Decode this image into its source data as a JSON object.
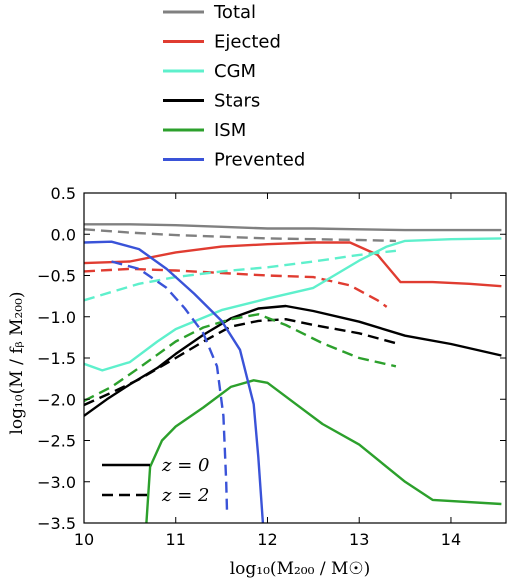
{
  "chart_data": {
    "type": "line",
    "xlabel": "log₁₀(M₂₀₀ / M☉)",
    "ylabel": "log₁₀(M / fᵦ M₂₀₀)",
    "xlim": [
      10.0,
      14.6
    ],
    "ylim": [
      -3.5,
      0.5
    ],
    "xticks": [
      "10",
      "11",
      "12",
      "13",
      "14"
    ],
    "yticks": [
      "0.5",
      "0.0",
      "−0.5",
      "−1.0",
      "−1.5",
      "−2.0",
      "−2.5",
      "−3.0",
      "−3.5"
    ],
    "grid": false,
    "legend_position": "above plot, left",
    "style_legend_position": "lower-left",
    "style_legend": [
      {
        "label": "z = 0",
        "dash": "solid"
      },
      {
        "label": "z = 2",
        "dash": "dashed"
      }
    ],
    "series": [
      {
        "name": "Total",
        "color": "#808080",
        "redshift": 0,
        "points": [
          [
            10.0,
            0.12
          ],
          [
            10.5,
            0.12
          ],
          [
            11.0,
            0.11
          ],
          [
            11.5,
            0.09
          ],
          [
            12.0,
            0.07
          ],
          [
            12.5,
            0.07
          ],
          [
            13.0,
            0.06
          ],
          [
            13.5,
            0.05
          ],
          [
            14.0,
            0.05
          ],
          [
            14.55,
            0.05
          ]
        ]
      },
      {
        "name": "Total",
        "color": "#808080",
        "redshift": 2,
        "points": [
          [
            10.0,
            0.06
          ],
          [
            10.5,
            0.02
          ],
          [
            11.0,
            -0.01
          ],
          [
            11.5,
            -0.03
          ],
          [
            12.0,
            -0.05
          ],
          [
            12.5,
            -0.06
          ],
          [
            13.0,
            -0.07
          ],
          [
            13.4,
            -0.08
          ]
        ]
      },
      {
        "name": "Ejected",
        "color": "#e03c31",
        "redshift": 0,
        "points": [
          [
            10.0,
            -0.35
          ],
          [
            10.5,
            -0.33
          ],
          [
            11.0,
            -0.22
          ],
          [
            11.5,
            -0.15
          ],
          [
            12.0,
            -0.12
          ],
          [
            12.5,
            -0.1
          ],
          [
            12.9,
            -0.1
          ],
          [
            13.2,
            -0.25
          ],
          [
            13.45,
            -0.58
          ],
          [
            13.8,
            -0.58
          ],
          [
            14.2,
            -0.6
          ],
          [
            14.55,
            -0.63
          ]
        ]
      },
      {
        "name": "Ejected",
        "color": "#e03c31",
        "redshift": 2,
        "points": [
          [
            10.0,
            -0.45
          ],
          [
            10.5,
            -0.42
          ],
          [
            11.0,
            -0.44
          ],
          [
            11.5,
            -0.47
          ],
          [
            12.0,
            -0.5
          ],
          [
            12.5,
            -0.52
          ],
          [
            12.9,
            -0.62
          ],
          [
            13.2,
            -0.8
          ],
          [
            13.3,
            -0.88
          ]
        ]
      },
      {
        "name": "CGM",
        "color": "#5ef0cc",
        "redshift": 0,
        "points": [
          [
            10.0,
            -1.57
          ],
          [
            10.2,
            -1.65
          ],
          [
            10.5,
            -1.55
          ],
          [
            10.8,
            -1.3
          ],
          [
            11.0,
            -1.15
          ],
          [
            11.5,
            -0.92
          ],
          [
            12.0,
            -0.78
          ],
          [
            12.5,
            -0.65
          ],
          [
            13.0,
            -0.32
          ],
          [
            13.3,
            -0.15
          ],
          [
            13.5,
            -0.08
          ],
          [
            14.0,
            -0.06
          ],
          [
            14.55,
            -0.05
          ]
        ]
      },
      {
        "name": "CGM",
        "color": "#5ef0cc",
        "redshift": 2,
        "points": [
          [
            10.0,
            -0.8
          ],
          [
            10.3,
            -0.7
          ],
          [
            10.6,
            -0.6
          ],
          [
            11.0,
            -0.52
          ],
          [
            11.5,
            -0.45
          ],
          [
            12.0,
            -0.4
          ],
          [
            12.5,
            -0.33
          ],
          [
            13.0,
            -0.25
          ],
          [
            13.4,
            -0.2
          ]
        ]
      },
      {
        "name": "Stars",
        "color": "#000000",
        "redshift": 0,
        "points": [
          [
            10.0,
            -2.2
          ],
          [
            10.25,
            -2.0
          ],
          [
            10.5,
            -1.82
          ],
          [
            10.8,
            -1.62
          ],
          [
            11.0,
            -1.45
          ],
          [
            11.3,
            -1.22
          ],
          [
            11.6,
            -1.02
          ],
          [
            11.9,
            -0.9
          ],
          [
            12.2,
            -0.87
          ],
          [
            12.5,
            -0.93
          ],
          [
            13.0,
            -1.06
          ],
          [
            13.5,
            -1.23
          ],
          [
            14.0,
            -1.33
          ],
          [
            14.55,
            -1.47
          ]
        ]
      },
      {
        "name": "Stars",
        "color": "#000000",
        "redshift": 2,
        "points": [
          [
            10.0,
            -2.07
          ],
          [
            10.3,
            -1.92
          ],
          [
            10.6,
            -1.76
          ],
          [
            11.0,
            -1.5
          ],
          [
            11.3,
            -1.3
          ],
          [
            11.6,
            -1.12
          ],
          [
            11.9,
            -1.05
          ],
          [
            12.2,
            -1.03
          ],
          [
            12.5,
            -1.1
          ],
          [
            13.0,
            -1.2
          ],
          [
            13.4,
            -1.32
          ]
        ]
      },
      {
        "name": "ISM",
        "color": "#2ca02c",
        "redshift": 0,
        "points": [
          [
            10.68,
            -3.5
          ],
          [
            10.72,
            -2.82
          ],
          [
            10.85,
            -2.5
          ],
          [
            11.0,
            -2.33
          ],
          [
            11.3,
            -2.1
          ],
          [
            11.6,
            -1.85
          ],
          [
            11.85,
            -1.77
          ],
          [
            12.0,
            -1.8
          ],
          [
            12.3,
            -2.05
          ],
          [
            12.6,
            -2.3
          ],
          [
            13.0,
            -2.55
          ],
          [
            13.5,
            -3.0
          ],
          [
            13.8,
            -3.22
          ],
          [
            14.55,
            -3.27
          ]
        ]
      },
      {
        "name": "ISM",
        "color": "#2ca02c",
        "redshift": 2,
        "points": [
          [
            10.0,
            -2.02
          ],
          [
            10.3,
            -1.85
          ],
          [
            10.6,
            -1.62
          ],
          [
            11.0,
            -1.3
          ],
          [
            11.3,
            -1.13
          ],
          [
            11.6,
            -1.03
          ],
          [
            11.9,
            -0.97
          ],
          [
            12.2,
            -1.1
          ],
          [
            12.6,
            -1.32
          ],
          [
            13.0,
            -1.5
          ],
          [
            13.4,
            -1.6
          ]
        ]
      },
      {
        "name": "Prevented",
        "color": "#3a53d8",
        "redshift": 0,
        "points": [
          [
            10.0,
            -0.1
          ],
          [
            10.3,
            -0.09
          ],
          [
            10.6,
            -0.18
          ],
          [
            10.9,
            -0.42
          ],
          [
            11.2,
            -0.72
          ],
          [
            11.5,
            -1.05
          ],
          [
            11.7,
            -1.4
          ],
          [
            11.85,
            -2.06
          ],
          [
            11.9,
            -2.7
          ],
          [
            11.95,
            -3.5
          ]
        ]
      },
      {
        "name": "Prevented",
        "color": "#3a53d8",
        "redshift": 2,
        "points": [
          [
            10.3,
            -0.33
          ],
          [
            10.6,
            -0.42
          ],
          [
            10.9,
            -0.65
          ],
          [
            11.1,
            -0.9
          ],
          [
            11.3,
            -1.2
          ],
          [
            11.45,
            -1.6
          ],
          [
            11.52,
            -2.2
          ],
          [
            11.55,
            -3.0
          ],
          [
            11.56,
            -3.4
          ]
        ]
      }
    ],
    "legend": [
      {
        "label": "Total",
        "color": "#808080"
      },
      {
        "label": "Ejected",
        "color": "#e03c31"
      },
      {
        "label": "CGM",
        "color": "#5ef0cc"
      },
      {
        "label": "Stars",
        "color": "#000000"
      },
      {
        "label": "ISM",
        "color": "#2ca02c"
      },
      {
        "label": "Prevented",
        "color": "#3a53d8"
      }
    ]
  }
}
